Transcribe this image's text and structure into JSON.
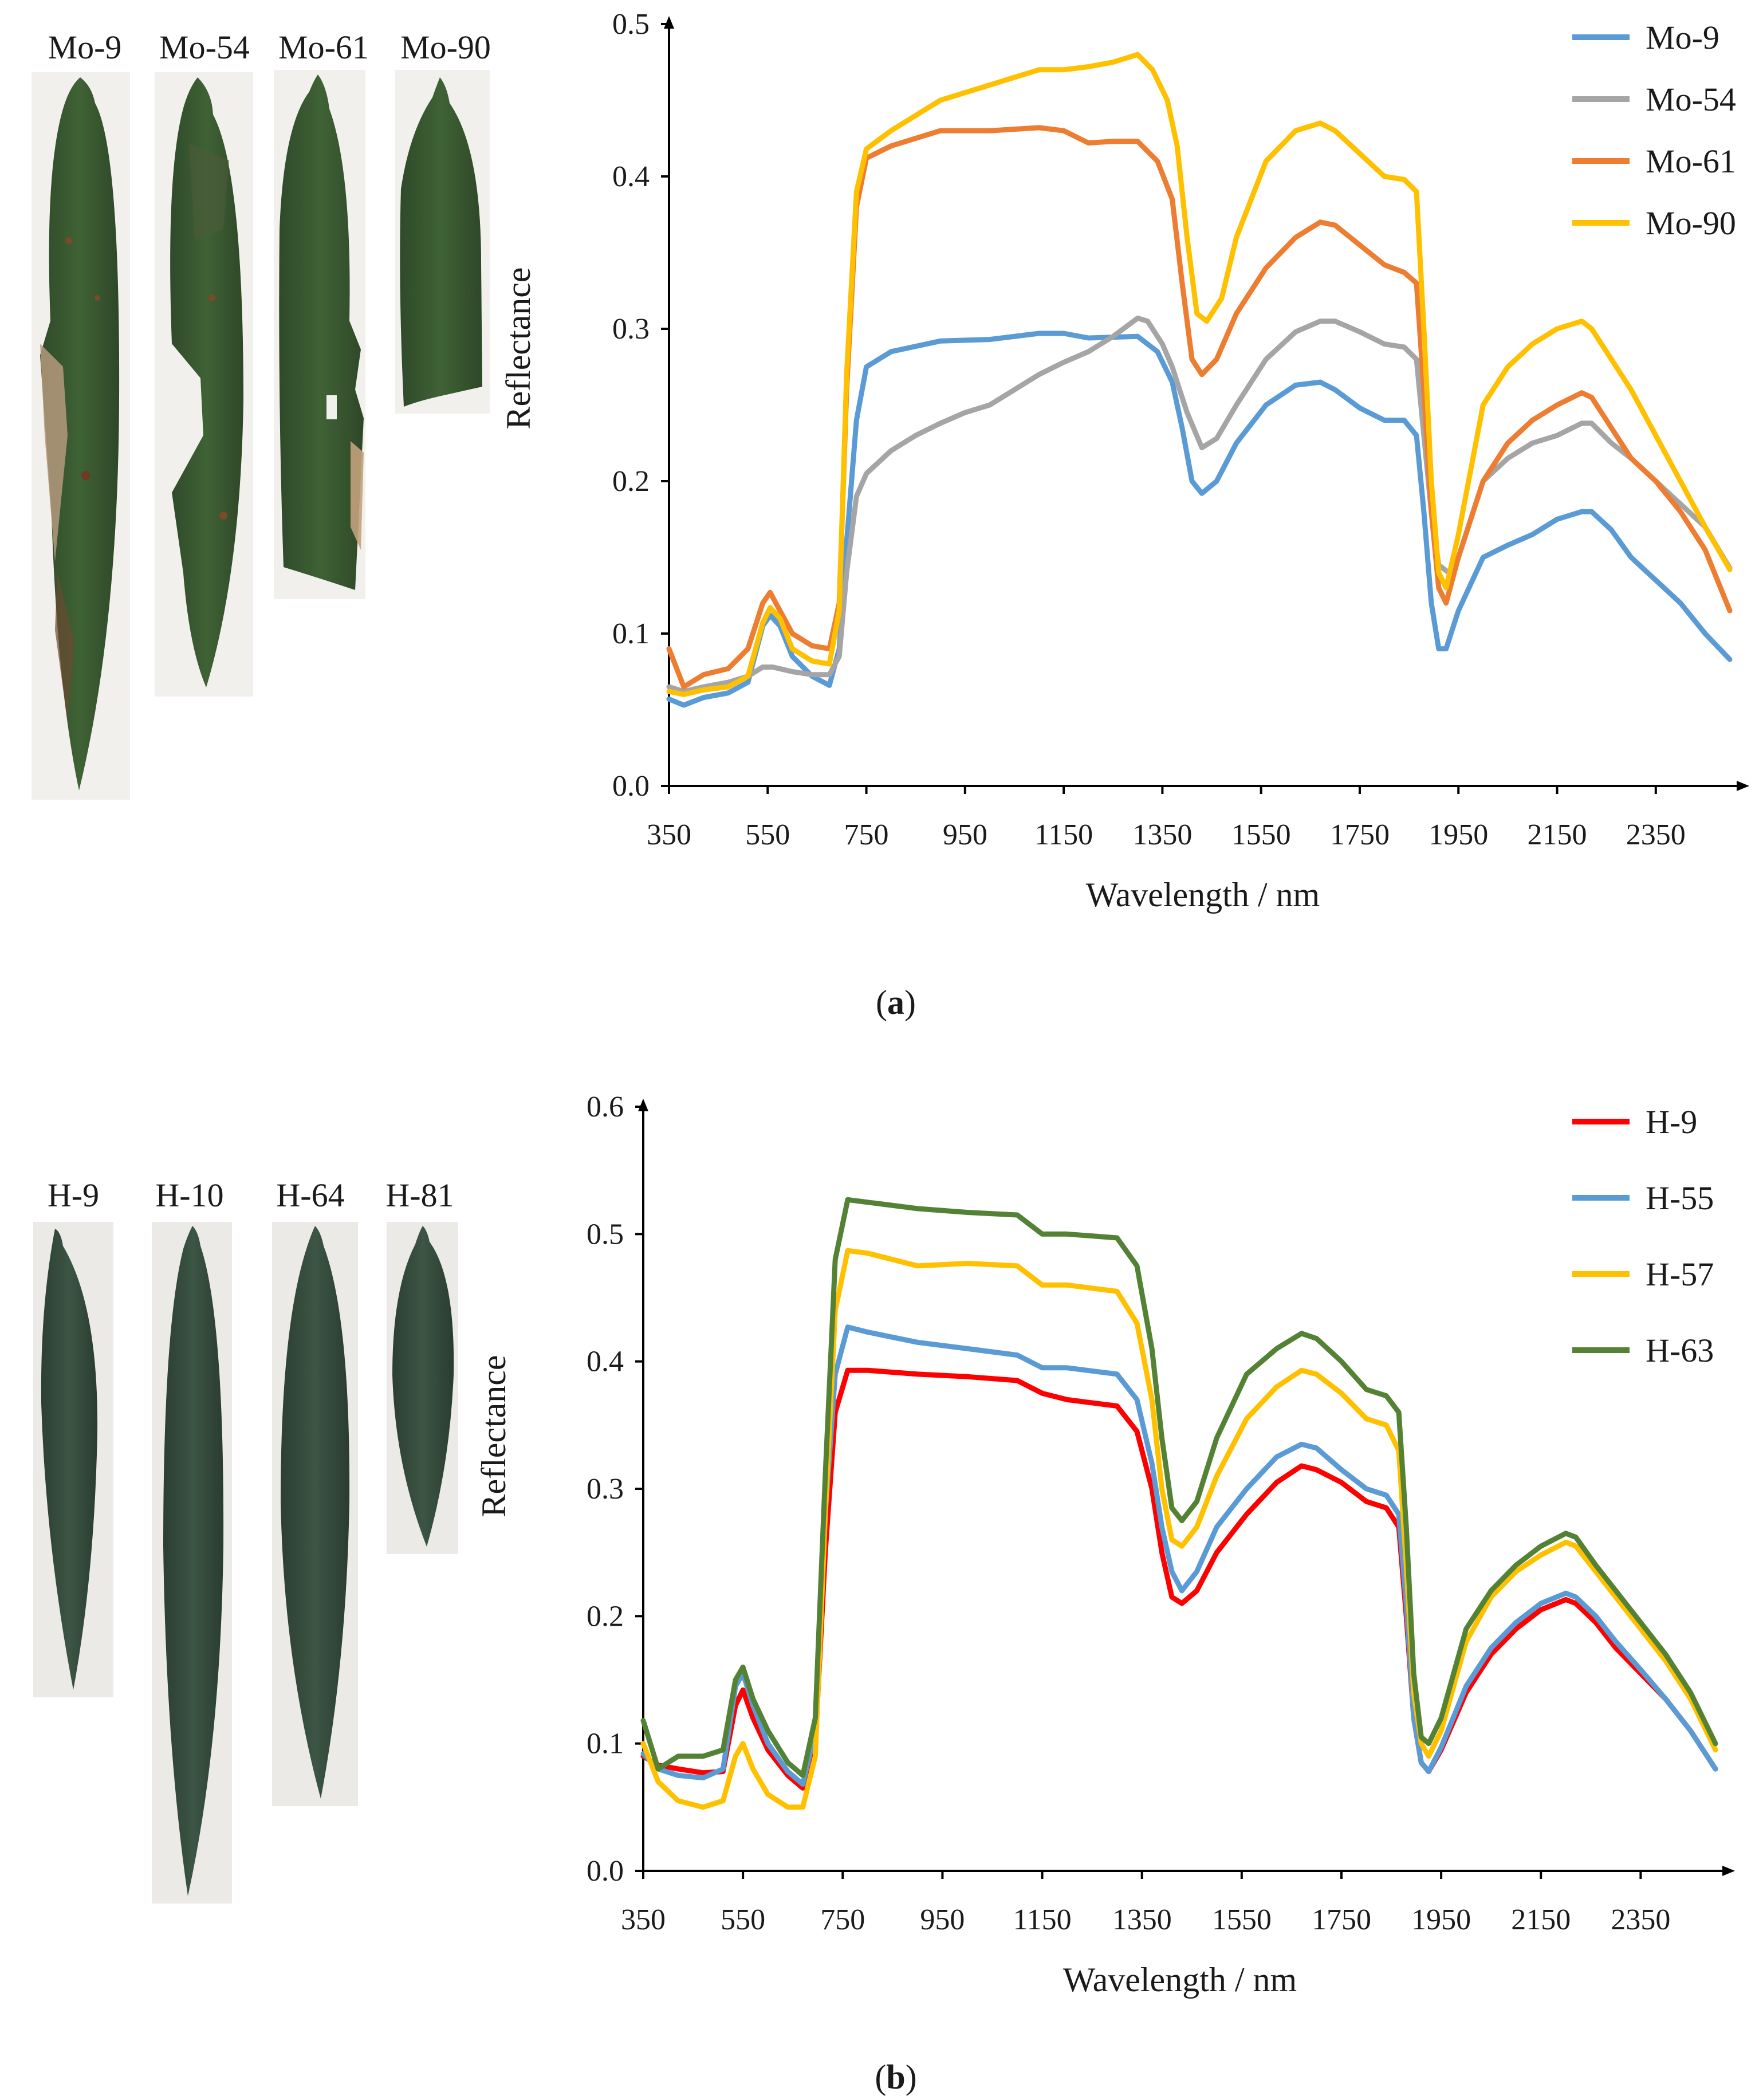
{
  "panels": [
    {
      "id": "a",
      "caption": {
        "open": "(",
        "letter": "a",
        "close": ")"
      },
      "photos": [
        {
          "label": "Mo-9",
          "condition": "diseased"
        },
        {
          "label": "Mo-54",
          "condition": "diseased"
        },
        {
          "label": "Mo-61",
          "condition": "diseased"
        },
        {
          "label": "Mo-90",
          "condition": "diseased"
        }
      ]
    },
    {
      "id": "b",
      "caption": {
        "open": "(",
        "letter": "b",
        "close": ")"
      },
      "photos": [
        {
          "label": "H-9",
          "condition": "healthy"
        },
        {
          "label": "H-10",
          "condition": "healthy"
        },
        {
          "label": "H-64",
          "condition": "healthy"
        },
        {
          "label": "H-81",
          "condition": "healthy"
        }
      ]
    }
  ],
  "chart_data": [
    {
      "type": "line",
      "title": "",
      "xlabel": "Wavelength / nm",
      "ylabel": "Reflectance",
      "xlim": [
        350,
        2500
      ],
      "ylim": [
        0,
        0.5
      ],
      "xticks": [
        350,
        550,
        750,
        950,
        1150,
        1350,
        1550,
        1750,
        1950,
        2150,
        2350
      ],
      "yticks": [
        "0.0",
        "0.1",
        "0.2",
        "0.3",
        "0.4",
        "0.5"
      ],
      "grid": false,
      "legend": "top-right",
      "series": [
        {
          "name": "Mo-9",
          "color": "#5b9bd5",
          "x": [
            350,
            380,
            420,
            470,
            510,
            540,
            555,
            575,
            600,
            640,
            675,
            695,
            710,
            730,
            750,
            800,
            900,
            1000,
            1100,
            1150,
            1200,
            1300,
            1340,
            1370,
            1390,
            1410,
            1430,
            1460,
            1500,
            1560,
            1620,
            1670,
            1700,
            1750,
            1800,
            1840,
            1865,
            1880,
            1895,
            1910,
            1925,
            1950,
            2000,
            2050,
            2100,
            2150,
            2200,
            2220,
            2260,
            2300,
            2350,
            2400,
            2450,
            2500
          ],
          "y": [
            0.057,
            0.053,
            0.058,
            0.061,
            0.068,
            0.105,
            0.112,
            0.105,
            0.085,
            0.072,
            0.066,
            0.09,
            0.16,
            0.24,
            0.275,
            0.285,
            0.292,
            0.293,
            0.297,
            0.297,
            0.294,
            0.295,
            0.285,
            0.265,
            0.235,
            0.2,
            0.192,
            0.2,
            0.225,
            0.25,
            0.263,
            0.265,
            0.26,
            0.248,
            0.24,
            0.24,
            0.23,
            0.18,
            0.12,
            0.09,
            0.09,
            0.115,
            0.15,
            0.158,
            0.165,
            0.175,
            0.18,
            0.18,
            0.168,
            0.15,
            0.135,
            0.12,
            0.1,
            0.083
          ]
        },
        {
          "name": "Mo-54",
          "color": "#a5a5a5",
          "x": [
            350,
            380,
            420,
            470,
            510,
            540,
            560,
            600,
            640,
            675,
            695,
            710,
            730,
            750,
            800,
            850,
            900,
            950,
            1000,
            1050,
            1100,
            1150,
            1200,
            1250,
            1300,
            1320,
            1350,
            1370,
            1400,
            1430,
            1460,
            1500,
            1560,
            1620,
            1670,
            1700,
            1750,
            1800,
            1840,
            1865,
            1880,
            1895,
            1910,
            1930,
            1950,
            2000,
            2050,
            2100,
            2150,
            2200,
            2220,
            2260,
            2300,
            2350,
            2400,
            2450,
            2500
          ],
          "y": [
            0.065,
            0.062,
            0.065,
            0.068,
            0.072,
            0.078,
            0.078,
            0.075,
            0.073,
            0.073,
            0.085,
            0.14,
            0.19,
            0.205,
            0.22,
            0.23,
            0.238,
            0.245,
            0.25,
            0.26,
            0.27,
            0.278,
            0.285,
            0.295,
            0.307,
            0.305,
            0.29,
            0.275,
            0.245,
            0.222,
            0.228,
            0.25,
            0.28,
            0.298,
            0.305,
            0.305,
            0.298,
            0.29,
            0.288,
            0.28,
            0.23,
            0.18,
            0.145,
            0.14,
            0.15,
            0.2,
            0.215,
            0.225,
            0.23,
            0.238,
            0.238,
            0.225,
            0.215,
            0.2,
            0.185,
            0.17,
            0.143
          ]
        },
        {
          "name": "Mo-61",
          "color": "#ed7d31",
          "x": [
            350,
            380,
            420,
            470,
            510,
            540,
            555,
            575,
            600,
            640,
            675,
            695,
            710,
            730,
            750,
            800,
            900,
            1000,
            1100,
            1150,
            1200,
            1250,
            1300,
            1340,
            1370,
            1390,
            1410,
            1430,
            1460,
            1500,
            1560,
            1620,
            1670,
            1700,
            1750,
            1800,
            1840,
            1865,
            1880,
            1895,
            1910,
            1925,
            1950,
            2000,
            2050,
            2100,
            2150,
            2200,
            2220,
            2260,
            2300,
            2350,
            2400,
            2450,
            2500
          ],
          "y": [
            0.09,
            0.065,
            0.073,
            0.077,
            0.09,
            0.12,
            0.127,
            0.115,
            0.1,
            0.092,
            0.09,
            0.12,
            0.26,
            0.38,
            0.412,
            0.42,
            0.43,
            0.43,
            0.432,
            0.43,
            0.422,
            0.423,
            0.423,
            0.41,
            0.385,
            0.33,
            0.28,
            0.27,
            0.28,
            0.31,
            0.34,
            0.36,
            0.37,
            0.368,
            0.355,
            0.342,
            0.337,
            0.33,
            0.26,
            0.18,
            0.13,
            0.12,
            0.15,
            0.2,
            0.225,
            0.24,
            0.25,
            0.258,
            0.255,
            0.235,
            0.215,
            0.2,
            0.18,
            0.155,
            0.115
          ]
        },
        {
          "name": "Mo-90",
          "color": "#ffc000",
          "x": [
            350,
            380,
            420,
            470,
            510,
            540,
            555,
            575,
            600,
            640,
            675,
            695,
            710,
            730,
            750,
            800,
            850,
            900,
            950,
            1000,
            1050,
            1100,
            1150,
            1200,
            1250,
            1300,
            1330,
            1360,
            1380,
            1400,
            1420,
            1440,
            1470,
            1500,
            1560,
            1620,
            1670,
            1700,
            1750,
            1800,
            1840,
            1865,
            1880,
            1895,
            1910,
            1925,
            1950,
            2000,
            2050,
            2100,
            2150,
            2200,
            2220,
            2260,
            2300,
            2350,
            2400,
            2450,
            2500
          ],
          "y": [
            0.062,
            0.06,
            0.063,
            0.065,
            0.072,
            0.107,
            0.117,
            0.11,
            0.09,
            0.082,
            0.08,
            0.115,
            0.27,
            0.39,
            0.418,
            0.43,
            0.44,
            0.45,
            0.455,
            0.46,
            0.465,
            0.47,
            0.47,
            0.472,
            0.475,
            0.48,
            0.47,
            0.45,
            0.42,
            0.36,
            0.31,
            0.305,
            0.32,
            0.36,
            0.41,
            0.43,
            0.435,
            0.43,
            0.415,
            0.4,
            0.398,
            0.39,
            0.3,
            0.2,
            0.14,
            0.13,
            0.165,
            0.25,
            0.275,
            0.29,
            0.3,
            0.305,
            0.3,
            0.28,
            0.26,
            0.23,
            0.2,
            0.17,
            0.142
          ]
        }
      ]
    },
    {
      "type": "line",
      "title": "",
      "xlabel": "Wavelength / nm",
      "ylabel": "Reflectance",
      "xlim": [
        350,
        2500
      ],
      "ylim": [
        0,
        0.6
      ],
      "xticks": [
        350,
        550,
        750,
        950,
        1150,
        1350,
        1550,
        1750,
        1950,
        2150,
        2350
      ],
      "yticks": [
        "0.0",
        "0.1",
        "0.2",
        "0.3",
        "0.4",
        "0.5",
        "0.6"
      ],
      "grid": false,
      "legend": "top-right",
      "series": [
        {
          "name": "H-9",
          "color": "#ff0000",
          "x": [
            350,
            380,
            420,
            470,
            510,
            535,
            550,
            570,
            600,
            640,
            670,
            695,
            715,
            735,
            760,
            800,
            900,
            1000,
            1100,
            1150,
            1200,
            1300,
            1340,
            1370,
            1390,
            1410,
            1430,
            1460,
            1500,
            1560,
            1620,
            1670,
            1700,
            1750,
            1800,
            1840,
            1865,
            1880,
            1895,
            1910,
            1925,
            1950,
            2000,
            2050,
            2100,
            2150,
            2200,
            2220,
            2260,
            2300,
            2350,
            2400,
            2450,
            2500
          ],
          "y": [
            0.09,
            0.083,
            0.08,
            0.077,
            0.078,
            0.13,
            0.142,
            0.12,
            0.095,
            0.075,
            0.065,
            0.1,
            0.25,
            0.36,
            0.393,
            0.393,
            0.39,
            0.388,
            0.385,
            0.375,
            0.37,
            0.365,
            0.345,
            0.3,
            0.25,
            0.215,
            0.21,
            0.22,
            0.25,
            0.28,
            0.305,
            0.318,
            0.315,
            0.305,
            0.29,
            0.285,
            0.27,
            0.2,
            0.12,
            0.085,
            0.078,
            0.095,
            0.14,
            0.17,
            0.19,
            0.205,
            0.213,
            0.21,
            0.195,
            0.175,
            0.155,
            0.135,
            0.11,
            0.08
          ]
        },
        {
          "name": "H-55",
          "color": "#5b9bd5",
          "x": [
            350,
            380,
            420,
            470,
            510,
            535,
            550,
            570,
            600,
            640,
            670,
            695,
            715,
            735,
            760,
            800,
            900,
            1000,
            1100,
            1150,
            1200,
            1300,
            1340,
            1370,
            1390,
            1410,
            1430,
            1460,
            1500,
            1560,
            1620,
            1670,
            1700,
            1750,
            1800,
            1840,
            1865,
            1880,
            1895,
            1910,
            1925,
            1950,
            2000,
            2050,
            2100,
            2150,
            2200,
            2220,
            2260,
            2300,
            2350,
            2400,
            2450,
            2500
          ],
          "y": [
            0.092,
            0.08,
            0.075,
            0.073,
            0.08,
            0.145,
            0.155,
            0.13,
            0.1,
            0.078,
            0.068,
            0.11,
            0.28,
            0.39,
            0.427,
            0.423,
            0.415,
            0.41,
            0.405,
            0.395,
            0.395,
            0.39,
            0.37,
            0.32,
            0.27,
            0.235,
            0.22,
            0.235,
            0.27,
            0.3,
            0.325,
            0.335,
            0.332,
            0.315,
            0.3,
            0.295,
            0.28,
            0.21,
            0.12,
            0.085,
            0.078,
            0.097,
            0.145,
            0.175,
            0.195,
            0.21,
            0.218,
            0.215,
            0.2,
            0.18,
            0.158,
            0.135,
            0.11,
            0.08
          ]
        },
        {
          "name": "H-57",
          "color": "#ffc000",
          "x": [
            350,
            380,
            420,
            470,
            510,
            535,
            550,
            570,
            600,
            640,
            670,
            695,
            715,
            735,
            760,
            800,
            900,
            1000,
            1100,
            1150,
            1200,
            1300,
            1340,
            1370,
            1390,
            1410,
            1430,
            1460,
            1500,
            1560,
            1620,
            1670,
            1700,
            1750,
            1800,
            1840,
            1865,
            1880,
            1895,
            1910,
            1925,
            1950,
            2000,
            2050,
            2100,
            2150,
            2200,
            2220,
            2260,
            2300,
            2350,
            2400,
            2450,
            2500
          ],
          "y": [
            0.1,
            0.07,
            0.055,
            0.05,
            0.055,
            0.09,
            0.1,
            0.08,
            0.06,
            0.05,
            0.05,
            0.09,
            0.28,
            0.44,
            0.487,
            0.485,
            0.475,
            0.477,
            0.475,
            0.46,
            0.46,
            0.455,
            0.43,
            0.37,
            0.3,
            0.26,
            0.255,
            0.27,
            0.31,
            0.355,
            0.38,
            0.393,
            0.39,
            0.375,
            0.355,
            0.35,
            0.33,
            0.24,
            0.14,
            0.1,
            0.09,
            0.11,
            0.18,
            0.215,
            0.235,
            0.248,
            0.258,
            0.255,
            0.235,
            0.215,
            0.19,
            0.165,
            0.135,
            0.095
          ]
        },
        {
          "name": "H-63",
          "color": "#548235",
          "x": [
            350,
            380,
            420,
            470,
            510,
            535,
            550,
            570,
            600,
            640,
            670,
            695,
            715,
            735,
            760,
            800,
            900,
            1000,
            1100,
            1150,
            1200,
            1300,
            1340,
            1370,
            1390,
            1410,
            1430,
            1460,
            1500,
            1560,
            1620,
            1670,
            1700,
            1750,
            1800,
            1840,
            1865,
            1880,
            1895,
            1910,
            1925,
            1950,
            2000,
            2050,
            2100,
            2150,
            2200,
            2220,
            2260,
            2300,
            2350,
            2400,
            2450,
            2500
          ],
          "y": [
            0.118,
            0.08,
            0.09,
            0.09,
            0.095,
            0.15,
            0.16,
            0.135,
            0.11,
            0.085,
            0.075,
            0.12,
            0.31,
            0.48,
            0.527,
            0.525,
            0.52,
            0.517,
            0.515,
            0.5,
            0.5,
            0.497,
            0.475,
            0.41,
            0.34,
            0.285,
            0.275,
            0.29,
            0.34,
            0.39,
            0.41,
            0.422,
            0.418,
            0.4,
            0.378,
            0.373,
            0.36,
            0.27,
            0.155,
            0.105,
            0.1,
            0.12,
            0.19,
            0.22,
            0.24,
            0.255,
            0.265,
            0.262,
            0.24,
            0.22,
            0.195,
            0.17,
            0.14,
            0.1
          ]
        }
      ]
    }
  ]
}
